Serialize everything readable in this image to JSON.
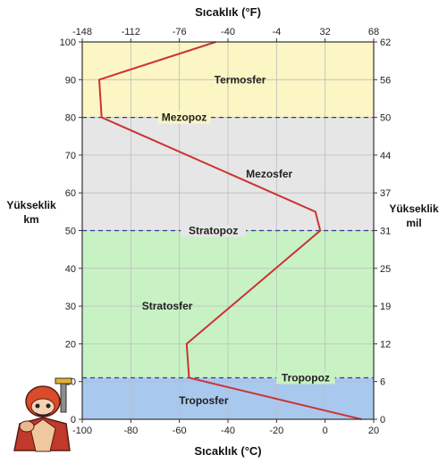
{
  "chart_data": {
    "type": "line",
    "title": "",
    "top_axis_label": "Sıcaklık (°F)",
    "bottom_axis_label": "Sıcaklık (°C)",
    "left_axis_label_line1": "Yükseklik",
    "left_axis_label_line2": "km",
    "right_axis_label_line1": "Yükseklik",
    "right_axis_label_line2": "mil",
    "xlim": [
      -100,
      20
    ],
    "ylim": [
      0,
      100
    ],
    "x_ticks_c": [
      "-100",
      "-80",
      "-60",
      "-40",
      "-20",
      "0",
      "20"
    ],
    "x_ticks_f": [
      "-148",
      "-112",
      "-76",
      "-40",
      "-4",
      "32",
      "68"
    ],
    "y_ticks_km": [
      "0",
      "10",
      "20",
      "30",
      "40",
      "50",
      "60",
      "70",
      "80",
      "90",
      "100"
    ],
    "y_ticks_mil": [
      "0",
      "6",
      "12",
      "19",
      "25",
      "31",
      "37",
      "44",
      "50",
      "56",
      "62"
    ],
    "series": [
      {
        "points": [
          [
            15,
            0
          ],
          [
            -56,
            11
          ],
          [
            -57,
            20
          ],
          [
            -2,
            50
          ],
          [
            -4,
            55
          ],
          [
            -92,
            80
          ],
          [
            -93,
            90
          ],
          [
            -45,
            100
          ]
        ]
      }
    ],
    "layers": [
      {
        "label": "Troposfer",
        "from": 0,
        "to": 11,
        "color": "#a9c8ee",
        "label_x": -50,
        "label_y": 5
      },
      {
        "label": "Stratosfer",
        "from": 11,
        "to": 50,
        "color": "#c8f2c4",
        "label_x": -65,
        "label_y": 30
      },
      {
        "label": "Mezosfer",
        "from": 50,
        "to": 80,
        "color": "#e6e6e6",
        "label_x": -23,
        "label_y": 65
      },
      {
        "label": "Termosfer",
        "from": 80,
        "to": 100,
        "color": "#fbf6c4",
        "label_x": -35,
        "label_y": 90
      }
    ],
    "boundaries": [
      {
        "label": "Tropopoz",
        "y": 11,
        "label_x": -8
      },
      {
        "label": "Stratopoz",
        "y": 50,
        "label_x": -46
      },
      {
        "label": "Mezopoz",
        "y": 80,
        "label_x": -58
      }
    ],
    "grid": true,
    "line_color": "#cc3333",
    "boundary_color": "#2b3d8f"
  }
}
